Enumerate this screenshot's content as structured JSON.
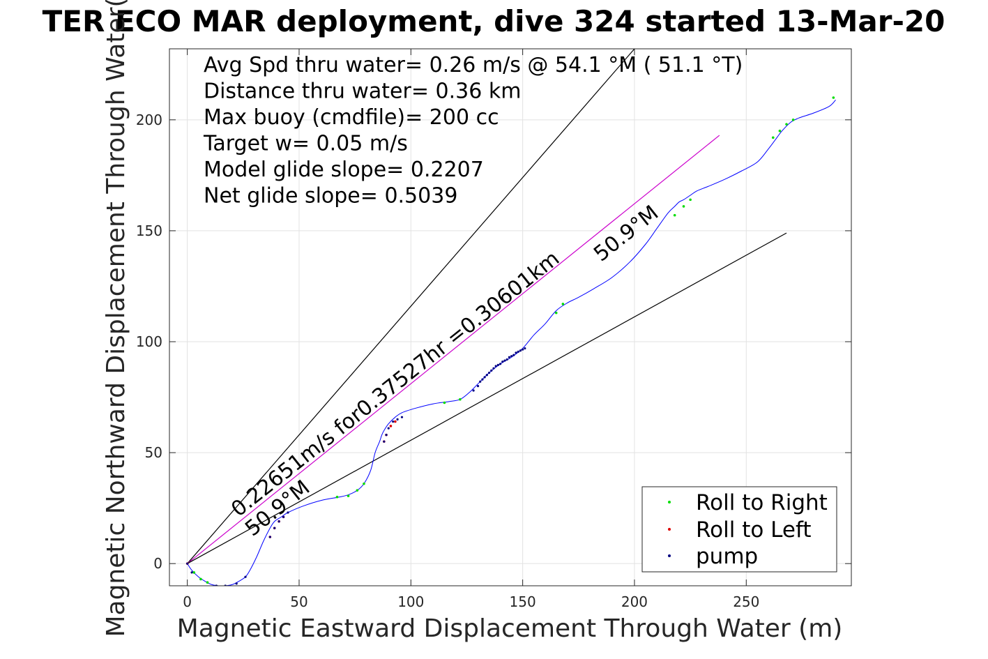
{
  "chart_data": {
    "type": "line",
    "title": "TER ECO MAR deployment, dive 324 started 13-Mar-20",
    "xlabel": "Magnetic Eastward Displacement Through Water (m)",
    "ylabel": "Magnetic Northward Displacement Through Water(",
    "xlim": [
      -8,
      297
    ],
    "ylim": [
      -10,
      232
    ],
    "xticks": [
      0,
      50,
      100,
      150,
      200,
      250
    ],
    "yticks": [
      0,
      50,
      100,
      150,
      200
    ],
    "grid": true,
    "info_lines": [
      "Avg Spd thru water=  0.26 m/s @  54.1 °M ( 51.1 °T)",
      "Distance thru water=  0.36 km",
      "Max buoy (cmdfile)= 200 cc",
      "Target w= 0.05 m/s",
      "Model glide slope= 0.2207",
      "Net glide slope= 0.5039"
    ],
    "annotations": {
      "speed_label": "0.22651m/s for0.37527hr =0.30601km",
      "heading_label_upper": "50.9°M",
      "heading_label_lower": "50.9°M"
    },
    "track": {
      "name": "",
      "color": "#0000ff",
      "x": [
        0,
        2,
        5,
        8,
        11,
        14,
        17,
        20,
        23,
        26,
        28,
        31,
        34,
        37,
        39,
        42,
        45,
        52,
        60,
        68,
        72,
        76,
        79,
        82,
        84,
        86,
        87,
        88,
        90,
        93,
        96,
        102,
        110,
        117,
        122,
        126,
        130,
        135,
        140,
        145,
        150,
        155,
        160,
        165,
        170,
        175,
        182,
        190,
        198,
        205,
        210,
        215,
        218,
        220,
        222,
        225,
        228,
        233,
        240,
        248,
        255,
        260,
        263,
        266,
        270,
        274,
        280,
        287,
        290
      ],
      "y": [
        0,
        -3,
        -6,
        -8,
        -9.5,
        -10,
        -10,
        -9.5,
        -8,
        -6,
        -3,
        3,
        10,
        16,
        19,
        21,
        23,
        26,
        28.5,
        30,
        31,
        33,
        36,
        42,
        50,
        55,
        58,
        60,
        63,
        66,
        68,
        70,
        72,
        73,
        74,
        77,
        81,
        86,
        90,
        93,
        97,
        103,
        108,
        114,
        117.5,
        120,
        124,
        129,
        136,
        144,
        151,
        158,
        161,
        163,
        164,
        166,
        168,
        170,
        173,
        177,
        181,
        187,
        191,
        195,
        199,
        201,
        203,
        206,
        209
      ]
    },
    "roll_right_points": {
      "name": "Roll to Right",
      "color": "#00dd00",
      "x": [
        3,
        6,
        9,
        67,
        72,
        76,
        79,
        115,
        122,
        165,
        168,
        218,
        222,
        225,
        262,
        265,
        268,
        271,
        289
      ],
      "y": [
        -4,
        -7,
        -8.5,
        30,
        30.5,
        33,
        36,
        72.5,
        74,
        113,
        117,
        157,
        161,
        164,
        192,
        195,
        198,
        200,
        210
      ]
    },
    "roll_left_points": {
      "name": "Roll to Left",
      "color": "#dd0000",
      "x": [
        0,
        37,
        39,
        41,
        43,
        88,
        89,
        91,
        93
      ],
      "y": [
        0,
        12,
        16,
        19,
        21,
        55,
        58,
        62,
        64
      ]
    },
    "pump_points": {
      "name": "pump",
      "color": "#000080",
      "x": [
        0,
        2,
        9,
        13,
        17,
        22,
        26,
        37,
        39,
        41,
        43,
        45,
        88,
        89,
        90,
        92,
        94,
        96,
        128,
        130,
        131,
        132,
        133,
        134,
        135,
        136,
        137,
        138,
        139,
        140,
        141,
        142,
        143,
        144,
        145,
        146,
        147,
        148,
        149,
        150,
        151
      ],
      "y": [
        0,
        -4,
        -8.5,
        -10,
        -10,
        -9,
        -6,
        12,
        16,
        19,
        21,
        23,
        55,
        58,
        61,
        64,
        65,
        66,
        78,
        80,
        82,
        83,
        84,
        85,
        86,
        87,
        88,
        89,
        89.5,
        90,
        91,
        91.5,
        92,
        93,
        93.5,
        94,
        95,
        95.5,
        96,
        96.5,
        97
      ]
    },
    "reference_lines": [
      {
        "name": "",
        "color": "#000000",
        "x": [
          0,
          200
        ],
        "y": [
          0,
          232
        ]
      },
      {
        "name": "",
        "color": "#cc00cc",
        "x": [
          0,
          238
        ],
        "y": [
          0,
          193
        ]
      },
      {
        "name": "",
        "color": "#000000",
        "x": [
          0,
          268
        ],
        "y": [
          0,
          149
        ]
      }
    ],
    "legend": {
      "position": "bottom-right",
      "entries": [
        "Roll to Right",
        "Roll to Left",
        "pump"
      ]
    }
  }
}
